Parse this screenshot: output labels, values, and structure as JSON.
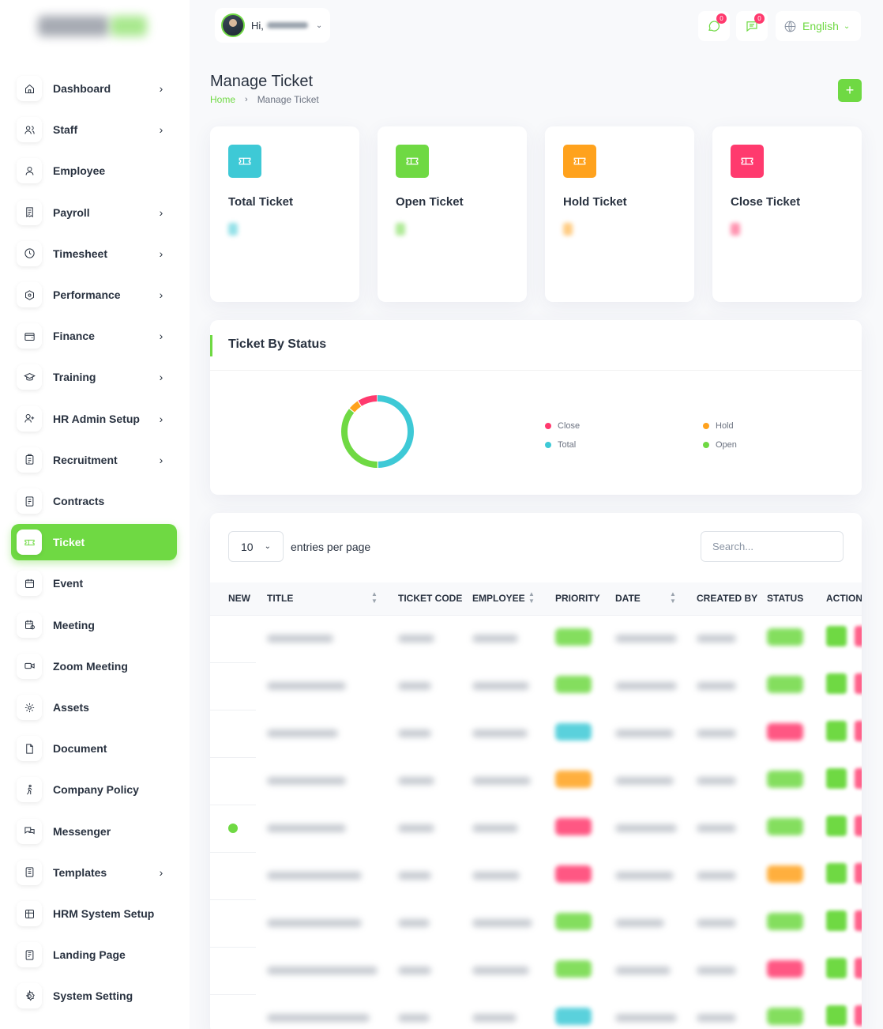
{
  "colors": {
    "primary": "#6fd943",
    "info": "#3ec9d6",
    "warning": "#ffa21d",
    "danger": "#ff3a6e",
    "text": "#293240"
  },
  "header": {
    "greeting": "Hi,",
    "language": "English",
    "messages_badge": "0",
    "chat_badge": "0"
  },
  "sidebar": {
    "items": [
      {
        "label": "Dashboard",
        "icon": "home-icon",
        "has_children": true
      },
      {
        "label": "Staff",
        "icon": "users-icon",
        "has_children": true
      },
      {
        "label": "Employee",
        "icon": "user-icon",
        "has_children": false
      },
      {
        "label": "Payroll",
        "icon": "receipt-icon",
        "has_children": true
      },
      {
        "label": "Timesheet",
        "icon": "clock-icon",
        "has_children": true
      },
      {
        "label": "Performance",
        "icon": "hexagon-icon",
        "has_children": true
      },
      {
        "label": "Finance",
        "icon": "wallet-icon",
        "has_children": true
      },
      {
        "label": "Training",
        "icon": "school-icon",
        "has_children": true
      },
      {
        "label": "HR Admin Setup",
        "icon": "user-plus-icon",
        "has_children": true
      },
      {
        "label": "Recruitment",
        "icon": "clipboard-icon",
        "has_children": true
      },
      {
        "label": "Contracts",
        "icon": "contract-icon",
        "has_children": false
      },
      {
        "label": "Ticket",
        "icon": "ticket-icon",
        "has_children": false,
        "active": true
      },
      {
        "label": "Event",
        "icon": "calendar-icon",
        "has_children": false
      },
      {
        "label": "Meeting",
        "icon": "calendar-time-icon",
        "has_children": false
      },
      {
        "label": "Zoom Meeting",
        "icon": "video-icon",
        "has_children": false
      },
      {
        "label": "Assets",
        "icon": "gear-cluster-icon",
        "has_children": false
      },
      {
        "label": "Document",
        "icon": "file-icon",
        "has_children": false
      },
      {
        "label": "Company Policy",
        "icon": "walk-icon",
        "has_children": false
      },
      {
        "label": "Messenger",
        "icon": "messages-icon",
        "has_children": false
      },
      {
        "label": "Templates",
        "icon": "template-icon",
        "has_children": true
      },
      {
        "label": "HRM System Setup",
        "icon": "table-icon",
        "has_children": false
      },
      {
        "label": "Landing Page",
        "icon": "page-icon",
        "has_children": false
      },
      {
        "label": "System Setting",
        "icon": "settings-icon",
        "has_children": false
      }
    ]
  },
  "page": {
    "title": "Manage Ticket",
    "breadcrumb_home": "Home",
    "breadcrumb_current": "Manage Ticket",
    "add_button": "+"
  },
  "stats": [
    {
      "label": "Total Ticket",
      "color": "#3ec9d6"
    },
    {
      "label": "Open Ticket",
      "color": "#6fd943"
    },
    {
      "label": "Hold Ticket",
      "color": "#ffa21d"
    },
    {
      "label": "Close Ticket",
      "color": "#ff3a6e"
    }
  ],
  "status_chart": {
    "title": "Ticket By Status",
    "legend": [
      {
        "label": "Close",
        "color": "#ff3a6e"
      },
      {
        "label": "Hold",
        "color": "#ffa21d"
      },
      {
        "label": "Total",
        "color": "#3ec9d6"
      },
      {
        "label": "Open",
        "color": "#6fd943"
      }
    ],
    "segments": [
      {
        "label": "Total",
        "value": 50,
        "color": "#3ec9d6"
      },
      {
        "label": "Open",
        "value": 36,
        "color": "#6fd943"
      },
      {
        "label": "Hold",
        "value": 5,
        "color": "#ffa21d"
      },
      {
        "label": "Close",
        "value": 9,
        "color": "#ff3a6e"
      }
    ]
  },
  "table": {
    "per_page": "10",
    "per_page_label": "entries per page",
    "search_placeholder": "Search...",
    "columns": [
      "NEW",
      "TITLE",
      "TICKET CODE",
      "EMPLOYEE",
      "PRIORITY",
      "DATE",
      "CREATED BY",
      "STATUS",
      "ACTION"
    ],
    "rows": [
      {
        "new": false,
        "priority_color": "#6fd943",
        "status_color": "#6fd943"
      },
      {
        "new": false,
        "priority_color": "#6fd943",
        "status_color": "#6fd943"
      },
      {
        "new": false,
        "priority_color": "#3ec9d6",
        "status_color": "#ff3a6e"
      },
      {
        "new": false,
        "priority_color": "#ffa21d",
        "status_color": "#6fd943"
      },
      {
        "new": true,
        "priority_color": "#ff3a6e",
        "status_color": "#6fd943"
      },
      {
        "new": false,
        "priority_color": "#ff3a6e",
        "status_color": "#ffa21d"
      },
      {
        "new": false,
        "priority_color": "#6fd943",
        "status_color": "#6fd943"
      },
      {
        "new": false,
        "priority_color": "#6fd943",
        "status_color": "#ff3a6e"
      },
      {
        "new": false,
        "priority_color": "#3ec9d6",
        "status_color": "#6fd943"
      }
    ]
  }
}
